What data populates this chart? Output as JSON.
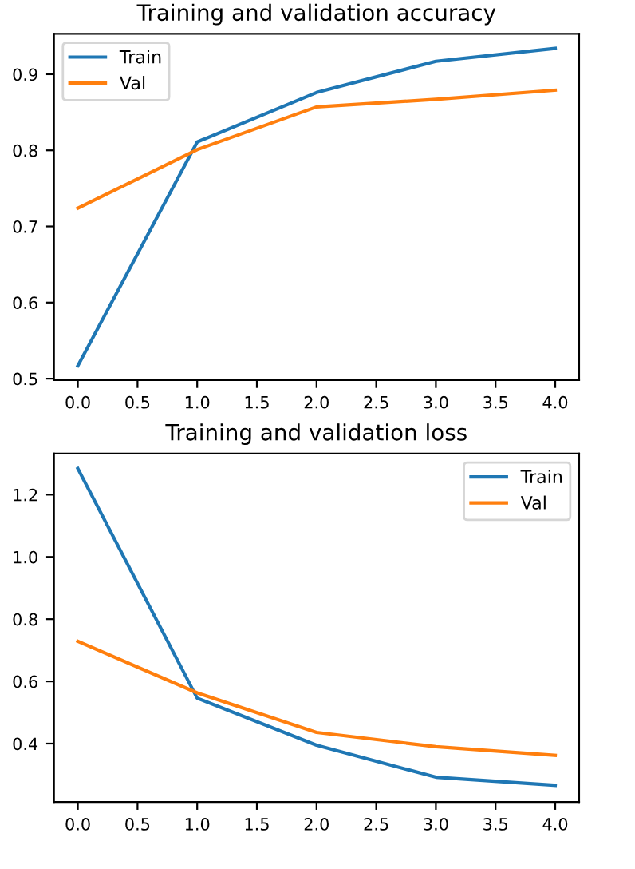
{
  "chart_data": [
    {
      "type": "line",
      "title": "Training and validation accuracy",
      "x": [
        0,
        1,
        2,
        3,
        4
      ],
      "series": [
        {
          "name": "Train",
          "color": "#1f77b4",
          "values": [
            0.517,
            0.811,
            0.876,
            0.917,
            0.934
          ]
        },
        {
          "name": "Val",
          "color": "#ff7f0e",
          "values": [
            0.724,
            0.801,
            0.857,
            0.867,
            0.879
          ]
        }
      ],
      "xlim": [
        -0.2,
        4.2
      ],
      "xticks": [
        {
          "value": 0,
          "label": "0.0"
        },
        0.5,
        {
          "value": 1,
          "label": "1.0"
        },
        1.5,
        {
          "value": 2,
          "label": "2.0"
        },
        2.5,
        {
          "value": 3,
          "label": "3.0"
        },
        3.5,
        {
          "value": 4,
          "label": "4.0"
        }
      ],
      "ylim": [
        0.498,
        0.953
      ],
      "yticks": [
        0.5,
        0.6,
        0.7,
        0.8,
        0.9
      ],
      "legend": "upper left",
      "grid": false
    },
    {
      "type": "line",
      "title": "Training and validation loss",
      "x": [
        0,
        1,
        2,
        3,
        4
      ],
      "series": [
        {
          "name": "Train",
          "color": "#1f77b4",
          "values": [
            1.284,
            0.546,
            0.395,
            0.292,
            0.266
          ]
        },
        {
          "name": "Val",
          "color": "#ff7f0e",
          "values": [
            0.729,
            0.563,
            0.436,
            0.39,
            0.362
          ]
        }
      ],
      "xlim": [
        -0.2,
        4.2
      ],
      "xticks": [
        {
          "value": 0,
          "label": "0.0"
        },
        0.5,
        {
          "value": 1,
          "label": "1.0"
        },
        1.5,
        {
          "value": 2,
          "label": "2.0"
        },
        2.5,
        {
          "value": 3,
          "label": "3.0"
        },
        3.5,
        {
          "value": 4,
          "label": "4.0"
        }
      ],
      "ylim": [
        0.212,
        1.332
      ],
      "yticks": [
        0.4,
        0.6,
        0.8,
        {
          "value": 1,
          "label": "1.0"
        },
        1.2
      ],
      "legend": "upper right",
      "grid": false
    }
  ]
}
